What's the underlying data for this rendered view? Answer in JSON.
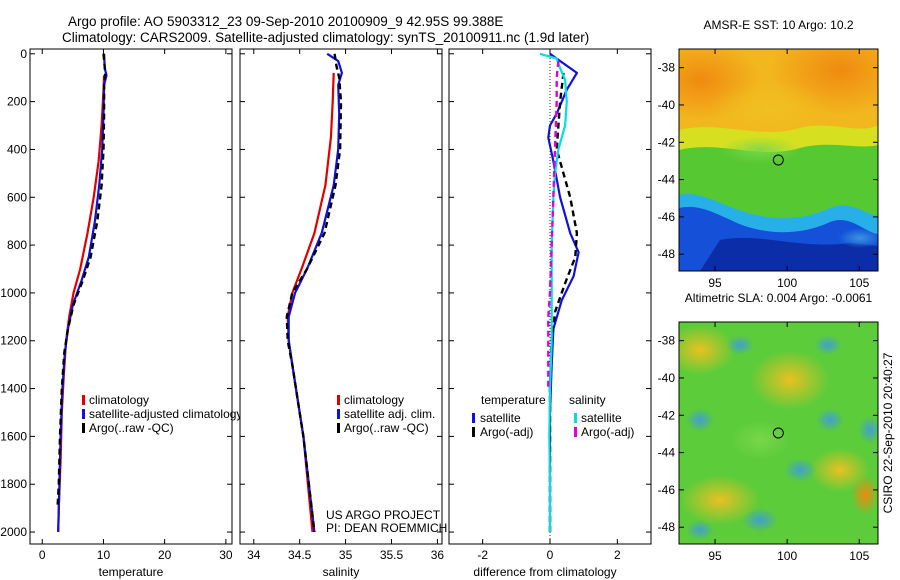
{
  "title": {
    "line1": "Argo profile: AO 5903312_23 09-Sep-2010 20100909_9 42.95S 99.388E",
    "line2": "Climatology: CARS2009. Satellite-adjusted climatology: synTS_20100911.nc (1.9d later)"
  },
  "colors": {
    "climatology": "#e00000",
    "satellite": "#1010e0",
    "argo": "#000000",
    "sat_salinity": "#00e0e0",
    "argo_salinity": "#e000e0"
  },
  "chart_data": [
    {
      "type": "line",
      "panel": "temperature",
      "xlabel": "temperature",
      "ylabel": "",
      "xlim": [
        -2,
        31
      ],
      "ylim": [
        2050,
        -20
      ],
      "xticks": [
        0,
        10,
        20,
        30
      ],
      "yticks": [
        0,
        200,
        400,
        600,
        800,
        1000,
        1200,
        1400,
        1600,
        1800,
        2000
      ],
      "legend": [
        "climatology",
        "satellite-adjusted climatology",
        "Argo(..raw -QC)"
      ],
      "series": [
        {
          "name": "climatology",
          "style": "solid",
          "points": [
            [
              10.1,
              90
            ],
            [
              10.0,
              150
            ],
            [
              9.7,
              300
            ],
            [
              9.2,
              450
            ],
            [
              8.4,
              600
            ],
            [
              7.4,
              750
            ],
            [
              6.2,
              900
            ],
            [
              5.1,
              1000
            ],
            [
              4.4,
              1100
            ],
            [
              3.9,
              1200
            ],
            [
              3.5,
              1350
            ],
            [
              3.2,
              1500
            ],
            [
              3.0,
              1700
            ],
            [
              2.7,
              1900
            ],
            [
              2.6,
              2000
            ]
          ]
        },
        {
          "name": "satellite-adjusted climatology",
          "style": "solid",
          "points": [
            [
              10.1,
              0
            ],
            [
              10.2,
              60
            ],
            [
              10.5,
              90
            ],
            [
              10.1,
              130
            ],
            [
              10.0,
              250
            ],
            [
              9.8,
              400
            ],
            [
              9.3,
              550
            ],
            [
              8.6,
              700
            ],
            [
              7.6,
              850
            ],
            [
              6.4,
              950
            ],
            [
              5.0,
              1050
            ],
            [
              4.2,
              1150
            ],
            [
              3.7,
              1250
            ],
            [
              3.3,
              1400
            ],
            [
              3.0,
              1600
            ],
            [
              2.8,
              1800
            ],
            [
              2.6,
              2000
            ]
          ]
        },
        {
          "name": "Argo(..raw -QC)",
          "style": "dashed",
          "points": [
            [
              10.0,
              0
            ],
            [
              10.3,
              80
            ],
            [
              10.1,
              130
            ],
            [
              10.1,
              250
            ],
            [
              10.0,
              400
            ],
            [
              9.7,
              550
            ],
            [
              9.0,
              700
            ],
            [
              7.9,
              850
            ],
            [
              6.6,
              950
            ],
            [
              5.1,
              1050
            ],
            [
              4.2,
              1150
            ],
            [
              3.6,
              1250
            ],
            [
              3.2,
              1400
            ],
            [
              2.9,
              1600
            ],
            [
              2.7,
              1800
            ],
            [
              2.5,
              1900
            ]
          ]
        }
      ]
    },
    {
      "type": "line",
      "panel": "salinity",
      "xlabel": "salinity",
      "ylabel": "",
      "xlim": [
        33.85,
        36.05
      ],
      "ylim": [
        2050,
        -20
      ],
      "xticks": [
        34,
        34.5,
        35,
        35.5,
        36
      ],
      "xtick_labels": [
        "34",
        "34.5",
        "35",
        "35.5",
        "36"
      ],
      "legend": [
        "climatology",
        "satellite adj. clim.",
        "Argo(..raw -QC)"
      ],
      "series": [
        {
          "name": "climatology",
          "style": "solid",
          "points": [
            [
              34.87,
              80
            ],
            [
              34.86,
              200
            ],
            [
              34.84,
              350
            ],
            [
              34.78,
              550
            ],
            [
              34.66,
              750
            ],
            [
              34.52,
              900
            ],
            [
              34.42,
              1000
            ],
            [
              34.37,
              1100
            ],
            [
              34.38,
              1200
            ],
            [
              34.42,
              1300
            ],
            [
              34.48,
              1450
            ],
            [
              34.54,
              1600
            ],
            [
              34.59,
              1800
            ],
            [
              34.64,
              2000
            ]
          ]
        },
        {
          "name": "satellite adj. clim.",
          "style": "solid",
          "points": [
            [
              34.8,
              0
            ],
            [
              34.92,
              30
            ],
            [
              34.96,
              80
            ],
            [
              34.92,
              130
            ],
            [
              34.93,
              250
            ],
            [
              34.92,
              400
            ],
            [
              34.87,
              550
            ],
            [
              34.74,
              750
            ],
            [
              34.58,
              900
            ],
            [
              34.45,
              1000
            ],
            [
              34.38,
              1100
            ],
            [
              34.38,
              1200
            ],
            [
              34.42,
              1300
            ],
            [
              34.48,
              1450
            ],
            [
              34.54,
              1600
            ],
            [
              34.6,
              1800
            ],
            [
              34.66,
              2000
            ]
          ]
        },
        {
          "name": "Argo(..raw -QC)",
          "style": "dashed",
          "points": [
            [
              34.88,
              0
            ],
            [
              34.9,
              50
            ],
            [
              34.93,
              100
            ],
            [
              34.95,
              200
            ],
            [
              34.94,
              400
            ],
            [
              34.89,
              550
            ],
            [
              34.77,
              750
            ],
            [
              34.58,
              900
            ],
            [
              34.42,
              1000
            ],
            [
              34.36,
              1100
            ],
            [
              34.37,
              1200
            ],
            [
              34.42,
              1300
            ],
            [
              34.48,
              1450
            ],
            [
              34.54,
              1600
            ],
            [
              34.6,
              1800
            ],
            [
              34.66,
              2000
            ]
          ]
        }
      ]
    },
    {
      "type": "line",
      "panel": "difference",
      "xlabel": "difference from climatology",
      "ylabel": "",
      "xlim": [
        -3.0,
        3.0
      ],
      "ylim": [
        2050,
        -20
      ],
      "xticks": [
        -2,
        0,
        2
      ],
      "legend_groups": [
        {
          "title": "temperature",
          "items": [
            "satellite",
            "Argo(-adj)"
          ]
        },
        {
          "title": "salinity",
          "items": [
            "satellite",
            "Argo(-adj)"
          ]
        }
      ],
      "series": [
        {
          "name": "temperature satellite",
          "style": "solid",
          "points": [
            [
              0.0,
              0
            ],
            [
              0.3,
              30
            ],
            [
              0.8,
              80
            ],
            [
              0.5,
              150
            ],
            [
              0.2,
              250
            ],
            [
              0.0,
              300
            ],
            [
              -0.05,
              350
            ],
            [
              0.1,
              450
            ],
            [
              0.3,
              600
            ],
            [
              0.6,
              750
            ],
            [
              0.85,
              830
            ],
            [
              0.7,
              930
            ],
            [
              0.35,
              1030
            ],
            [
              0.1,
              1150
            ],
            [
              0.05,
              1300
            ],
            [
              0.0,
              1500
            ],
            [
              0.0,
              1700
            ],
            [
              0.0,
              2000
            ]
          ]
        },
        {
          "name": "temperature Argo(-adj)",
          "style": "dashed",
          "points": [
            [
              0.4,
              80
            ],
            [
              0.3,
              200
            ],
            [
              0.2,
              400
            ],
            [
              0.6,
              600
            ],
            [
              0.8,
              750
            ],
            [
              0.75,
              850
            ],
            [
              0.45,
              960
            ],
            [
              0.15,
              1080
            ],
            [
              0.05,
              1200
            ],
            [
              0.0,
              1400
            ],
            [
              0.0,
              1700
            ],
            [
              0.0,
              2000
            ]
          ]
        },
        {
          "name": "salinity satellite",
          "style": "solid",
          "points": [
            [
              -0.3,
              0
            ],
            [
              0.2,
              20
            ],
            [
              0.3,
              60
            ],
            [
              0.45,
              110
            ],
            [
              0.5,
              200
            ],
            [
              0.45,
              300
            ],
            [
              0.25,
              400
            ],
            [
              0.15,
              500
            ],
            [
              0.1,
              600
            ],
            [
              0.05,
              800
            ],
            [
              0.05,
              1000
            ],
            [
              0.05,
              1200
            ],
            [
              0.0,
              1400
            ],
            [
              -0.02,
              1600
            ],
            [
              0.0,
              1800
            ],
            [
              0.0,
              2000
            ]
          ]
        },
        {
          "name": "salinity Argo(-adj)",
          "style": "dashed",
          "points": [
            [
              0.25,
              30
            ],
            [
              0.2,
              100
            ],
            [
              0.2,
              200
            ],
            [
              0.15,
              400
            ],
            [
              0.0,
              1000
            ],
            [
              -0.05,
              1100
            ],
            [
              -0.05,
              1200
            ],
            [
              -0.05,
              1300
            ],
            [
              -0.05,
              1400
            ]
          ]
        }
      ]
    },
    {
      "type": "heatmap",
      "panel": "sst_map",
      "title": "AMSR-E SST: 10 Argo: 10.2",
      "xlim": [
        92.5,
        106.3
      ],
      "ylim": [
        -48.9,
        -37.0
      ],
      "xticks": [
        95,
        100,
        105
      ],
      "yticks": [
        -38,
        -40,
        -42,
        -44,
        -46,
        -48
      ],
      "marker": {
        "lon": 99.388,
        "lat": -42.95
      }
    },
    {
      "type": "heatmap",
      "panel": "sla_map",
      "title": "Altimetric SLA: 0.004 Argo: -0.0061",
      "xlim": [
        92.5,
        106.3
      ],
      "ylim": [
        -48.9,
        -37.0
      ],
      "xticks": [
        95,
        100,
        105
      ],
      "yticks": [
        -38,
        -40,
        -42,
        -44,
        -46,
        -48
      ],
      "marker": {
        "lon": 99.388,
        "lat": -42.95
      }
    }
  ],
  "project": {
    "line1": "US ARGO PROJECT",
    "line2": "PI: DEAN ROEMMICH"
  },
  "side_note": "CSIRO 22-Sep-2010 20:40:27"
}
